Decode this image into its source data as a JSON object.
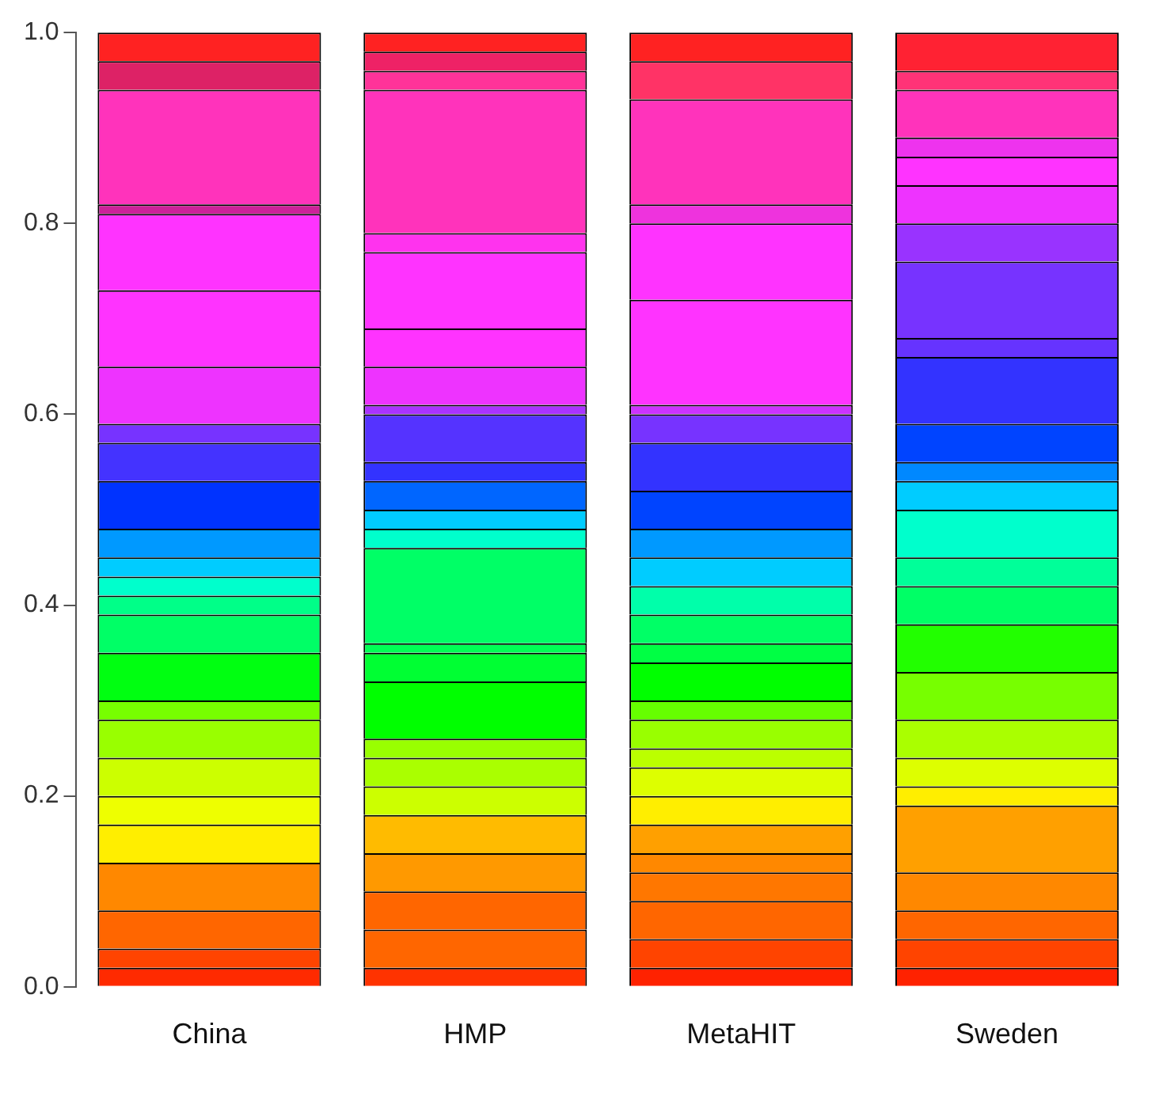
{
  "chart_data": {
    "type": "bar",
    "stacked": true,
    "categories": [
      "China",
      "HMP",
      "MetaHIT",
      "Sweden"
    ],
    "ylim": [
      0,
      1
    ],
    "yticks": [
      {
        "value": 0,
        "label": "0.0"
      },
      {
        "value": 0.2,
        "label": "0.2"
      },
      {
        "value": 0.4,
        "label": "0.4"
      },
      {
        "value": 0.6,
        "label": "0.6"
      },
      {
        "value": 0.8,
        "label": "0.8"
      },
      {
        "value": 1,
        "label": "1.0"
      }
    ],
    "grid": false,
    "legend": false,
    "series": [
      {
        "values": [
          0.02,
          0.02,
          0.02,
          0.02
        ],
        "colors": [
          "#ff2a00",
          "#ff3300",
          "#ff2200",
          "#ff2200"
        ]
      },
      {
        "values": [
          0.02,
          0.04,
          0.03,
          0.03
        ],
        "colors": [
          "#ff4400",
          "#ff6600",
          "#ff4400",
          "#ff4400"
        ]
      },
      {
        "values": [
          0.04,
          0.04,
          0.04,
          0.03
        ],
        "colors": [
          "#ff6600",
          "#ff6600",
          "#ff6600",
          "#ff6600"
        ]
      },
      {
        "values": [
          0.05,
          0.04,
          0.03,
          0.04
        ],
        "colors": [
          "#ff8800",
          "#ff9900",
          "#ff7700",
          "#ff8800"
        ]
      },
      {
        "values": [
          0.04,
          0.04,
          0.02,
          0.07
        ],
        "colors": [
          "#ffee00",
          "#ffbb00",
          "#ff8800",
          "#ffa000"
        ]
      },
      {
        "values": [
          0.03,
          0.03,
          0.03,
          0.02
        ],
        "colors": [
          "#eeff00",
          "#ccff00",
          "#ffa000",
          "#ffee00"
        ]
      },
      {
        "values": [
          0.04,
          0.03,
          0.03,
          0.03
        ],
        "colors": [
          "#ccff00",
          "#aaff00",
          "#ffee00",
          "#ddff00"
        ]
      },
      {
        "values": [
          0.04,
          0.02,
          0.03,
          0.04
        ],
        "colors": [
          "#99ff00",
          "#99ff00",
          "#ddff00",
          "#aaff00"
        ]
      },
      {
        "values": [
          0.02,
          0.06,
          0.02,
          0.05
        ],
        "colors": [
          "#77ff00",
          "#00ff00",
          "#bbff00",
          "#77ff00"
        ]
      },
      {
        "values": [
          0.05,
          0.03,
          0.03,
          0.05
        ],
        "colors": [
          "#00ff11",
          "#00ff33",
          "#99ff00",
          "#22ff00"
        ]
      },
      {
        "values": [
          0.04,
          0.01,
          0.02,
          0.04
        ],
        "colors": [
          "#00ff66",
          "#00ff55",
          "#66ff00",
          "#00ff66"
        ]
      },
      {
        "values": [
          0.02,
          0.1,
          0.04,
          0.03
        ],
        "colors": [
          "#00ff88",
          "#00ff66",
          "#00ff00",
          "#00ff99"
        ]
      },
      {
        "values": [
          0.02,
          0.02,
          0.02,
          0.05
        ],
        "colors": [
          "#00ffcc",
          "#00ffcc",
          "#00ff44",
          "#00ffcc"
        ]
      },
      {
        "values": [
          0.02,
          0.02,
          0.03,
          0.03
        ],
        "colors": [
          "#00ccff",
          "#00ccff",
          "#00ff66",
          "#00ccff"
        ]
      },
      {
        "values": [
          0.03,
          0.03,
          0.03,
          0.02
        ],
        "colors": [
          "#0099ff",
          "#0066ff",
          "#00ffaa",
          "#0088ff"
        ]
      },
      {
        "values": [
          0.05,
          0.02,
          0.03,
          0.04
        ],
        "colors": [
          "#0033ff",
          "#3333ff",
          "#00ccff",
          "#0044ff"
        ]
      },
      {
        "values": [
          0.04,
          0.05,
          0.03,
          0.07
        ],
        "colors": [
          "#4433ff",
          "#5533ff",
          "#0099ff",
          "#3333ff"
        ]
      },
      {
        "values": [
          0.02,
          0.01,
          0.04,
          0.02
        ],
        "colors": [
          "#7733ff",
          "#aa33ff",
          "#0044ff",
          "#6633ff"
        ]
      },
      {
        "values": [
          0.06,
          0.04,
          0.05,
          0.08
        ],
        "colors": [
          "#ee33ff",
          "#ee33ff",
          "#3333ff",
          "#7733ff"
        ]
      },
      {
        "values": [
          0.08,
          0.04,
          0.03,
          0.04
        ],
        "colors": [
          "#ff33ff",
          "#ff33ff",
          "#7733ff",
          "#9933ff"
        ]
      },
      {
        "values": [
          0.08,
          0.08,
          0.01,
          0.04
        ],
        "colors": [
          "#ff33ff",
          "#ff33ff",
          "#cc33ff",
          "#ee33ff"
        ]
      },
      {
        "values": [
          0.01,
          0.02,
          0.11,
          0.03
        ],
        "colors": [
          "#cc2299",
          "#ff33ee",
          "#ff33ff",
          "#ff33ff"
        ]
      },
      {
        "values": [
          0.12,
          0.15,
          0.08,
          0.02
        ],
        "colors": [
          "#ff33bb",
          "#ff33bb",
          "#ff33ff",
          "#ee33ee"
        ]
      },
      {
        "values": [
          0.03,
          0.02,
          0.02,
          0.05
        ],
        "colors": [
          "#dd2266",
          "#ff3399",
          "#ee33dd",
          "#ff33bb"
        ]
      },
      {
        "values": [
          0.03,
          0.02,
          0.11,
          0.02
        ],
        "colors": [
          "#ff2222",
          "#ee2266",
          "#ff33bb",
          "#ff3377"
        ]
      },
      {
        "values": [
          null,
          0.02,
          0.04,
          0.04
        ],
        "colors": [
          null,
          "#ff2222",
          "#ff3366",
          "#ff2233"
        ]
      },
      {
        "values": [
          null,
          null,
          0.03,
          null
        ],
        "colors": [
          null,
          null,
          "#ff2222",
          null
        ]
      }
    ]
  }
}
